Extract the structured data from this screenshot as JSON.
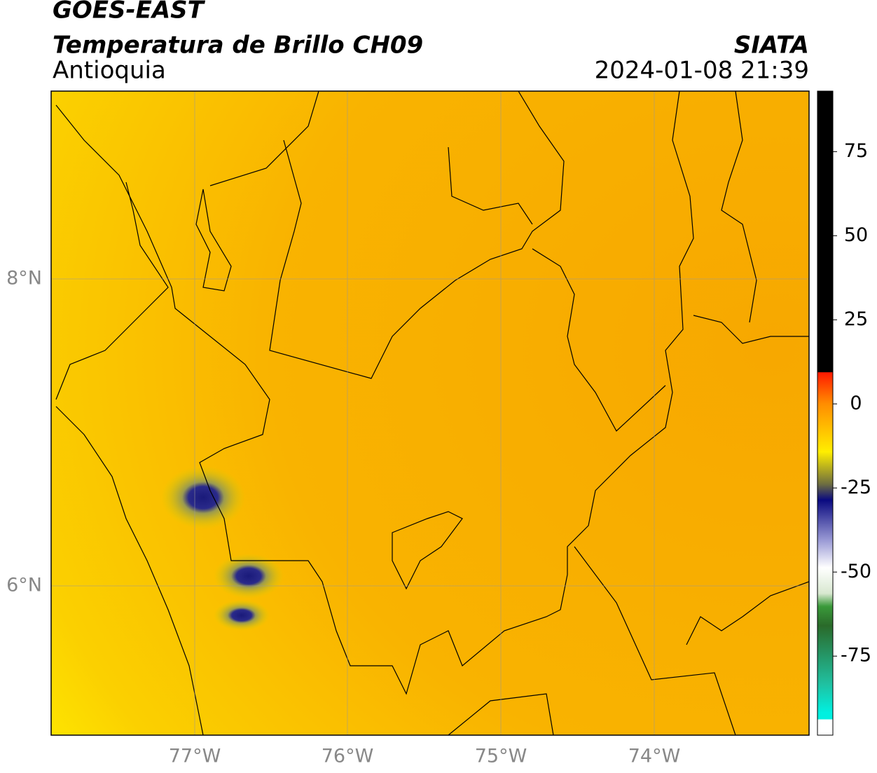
{
  "header": {
    "source": "GOES-EAST",
    "title": "Temperatura de Brillo CH09",
    "region": "Antioquia",
    "agency": "SIATA",
    "timestamp": "2024-01-08 21:39"
  },
  "map": {
    "lon_ticks": [
      "77°W",
      "76°W",
      "75°W",
      "74°W"
    ],
    "lat_ticks": [
      "8°N",
      "6°N"
    ]
  },
  "colorbar": {
    "range": [
      -98.5,
      93
    ],
    "ticks": [
      75,
      50,
      25,
      0,
      -25,
      -50,
      -75
    ]
  }
}
